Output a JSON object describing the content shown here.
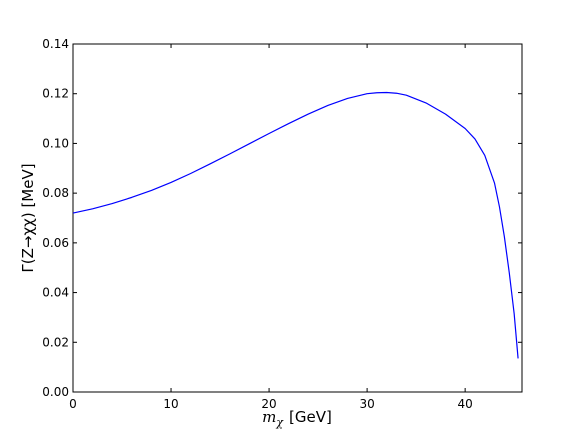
{
  "chart_data": {
    "type": "line",
    "title": "",
    "xlabel_prefix": "m",
    "xlabel_sub": "χ",
    "xlabel_unit": "[GeV]",
    "ylabel_text": "Γ(Z→χχ) [MeV]",
    "xlim": [
      0,
      45.8
    ],
    "ylim": [
      0,
      0.14
    ],
    "x_ticks": [
      0,
      10,
      20,
      30,
      40
    ],
    "x_tick_labels": [
      "0",
      "10",
      "20",
      "30",
      "40"
    ],
    "y_ticks": [
      0,
      0.02,
      0.04,
      0.06,
      0.08,
      0.1,
      0.12,
      0.14
    ],
    "y_tick_labels": [
      "0.00",
      "0.02",
      "0.04",
      "0.06",
      "0.08",
      "0.10",
      "0.12",
      "0.14"
    ],
    "grid": false,
    "legend": "none",
    "series": [
      {
        "color": "#0000ff",
        "x": [
          0,
          2,
          4,
          6,
          8,
          10,
          12,
          14,
          16,
          18,
          20,
          22,
          24,
          26,
          28,
          30,
          31,
          32,
          33,
          34,
          36,
          38,
          40,
          41,
          42,
          43,
          43.5,
          44,
          44.5,
          45,
          45.4
        ],
        "y": [
          0.072,
          0.0737,
          0.0758,
          0.0783,
          0.0811,
          0.0843,
          0.0879,
          0.0918,
          0.0958,
          0.0999,
          0.104,
          0.108,
          0.1118,
          0.1153,
          0.1181,
          0.12,
          0.1204,
          0.1205,
          0.1202,
          0.1194,
          0.1163,
          0.1118,
          0.106,
          0.1018,
          0.0952,
          0.084,
          0.0745,
          0.0625,
          0.048,
          0.0315,
          0.0135
        ]
      }
    ]
  }
}
